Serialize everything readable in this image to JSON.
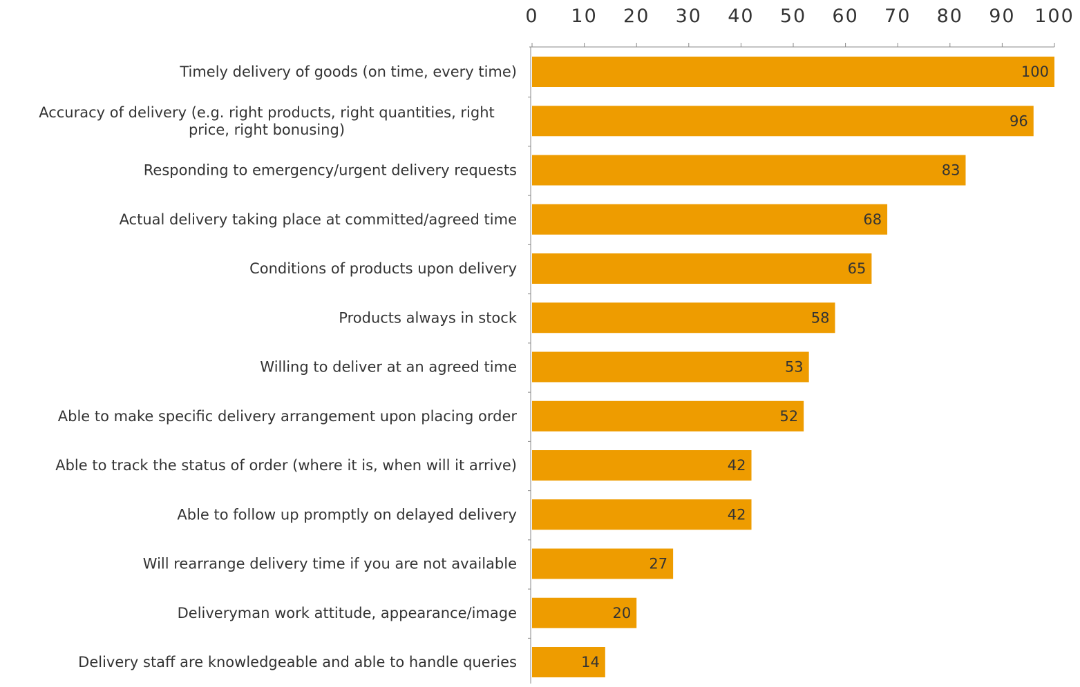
{
  "chart_data": {
    "type": "bar",
    "orientation": "horizontal",
    "categories": [
      [
        "Timely delivery of goods (on time, every time)"
      ],
      [
        "Accuracy of delivery (e.g. right products, right quantities, right",
        "price, right bonusing)"
      ],
      [
        "Responding to emergency/urgent delivery requests"
      ],
      [
        "Actual delivery taking place at committed/agreed time"
      ],
      [
        "Conditions of products upon delivery"
      ],
      [
        "Products always in stock"
      ],
      [
        "Willing to deliver at an agreed time"
      ],
      [
        "Able to make specific delivery arrangement upon placing order"
      ],
      [
        "Able to track the status of order (where it is, when will it arrive)"
      ],
      [
        "Able to follow up promptly on delayed delivery"
      ],
      [
        "Will rearrange delivery time if you are not available"
      ],
      [
        "Deliveryman work attitude, appearance/image"
      ],
      [
        "Delivery staff are knowledgeable and able to handle queries"
      ]
    ],
    "values": [
      100,
      96,
      83,
      68,
      65,
      58,
      53,
      52,
      42,
      42,
      27,
      20,
      14
    ],
    "x_ticks": [
      "0",
      "10",
      "20",
      "30",
      "40",
      "50",
      "60",
      "70",
      "80",
      "90",
      "100"
    ],
    "xlim": [
      0,
      100
    ],
    "axis_position": "top",
    "grid": false,
    "bar_color": "#EE9C00",
    "axis_color": "#888888",
    "text_color": "#333333"
  }
}
